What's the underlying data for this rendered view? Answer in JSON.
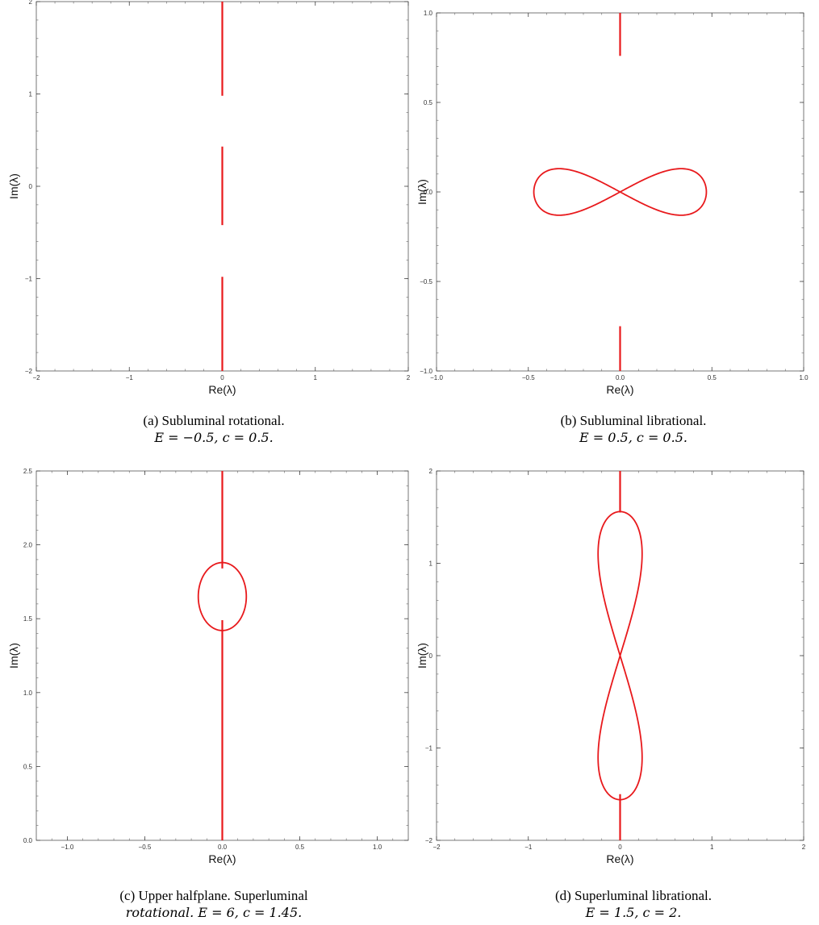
{
  "chart_data": [
    {
      "type": "line",
      "panel": "a",
      "xlabel": "Re(λ)",
      "ylabel": "Im(λ)",
      "xlim": [
        -2,
        2
      ],
      "ylim": [
        -2,
        2
      ],
      "xticks": [
        "−2",
        "−1",
        "0",
        "1",
        "2"
      ],
      "yticks": [
        "−2",
        "−1",
        "0",
        "1",
        "2"
      ],
      "line_color": "#e8191c",
      "series": [
        {
          "x": [
            0,
            0
          ],
          "y": [
            0.98,
            2.0
          ]
        },
        {
          "x": [
            0,
            0
          ],
          "y": [
            -0.42,
            0.43
          ]
        },
        {
          "x": [
            0,
            0
          ],
          "y": [
            -2.0,
            -0.98
          ]
        }
      ],
      "caption_line1": "(a) Subluminal rotational.",
      "caption_line2": "E = −0.5,  c = 0.5."
    },
    {
      "type": "line",
      "panel": "b",
      "xlabel": "Re(λ)",
      "ylabel": "Im(λ)",
      "xlim": [
        -1,
        1
      ],
      "ylim": [
        -1,
        1
      ],
      "xticks": [
        "−1.0",
        "−0.5",
        "0.0",
        "0.5",
        "1.0"
      ],
      "yticks": [
        "−1.0",
        "−0.5",
        "0.0",
        "0.5",
        "1.0"
      ],
      "line_color": "#e8191c",
      "series": [
        {
          "x": [
            0,
            0
          ],
          "y": [
            0.76,
            1.0
          ]
        },
        {
          "x": [
            0,
            0
          ],
          "y": [
            -1.0,
            -0.75
          ]
        },
        {
          "curve": "figure-eight-horizontal",
          "half_width": 0.47,
          "half_height": 0.13,
          "center": [
            0,
            0
          ]
        }
      ],
      "caption_line1": "(b) Subluminal librational.",
      "caption_line2": "E = 0.5,  c = 0.5."
    },
    {
      "type": "line",
      "panel": "c",
      "xlabel": "Re(λ)",
      "ylabel": "Im(λ)",
      "xlim": [
        -1.2,
        1.2
      ],
      "ylim": [
        0,
        2.5
      ],
      "xticks": [
        "−1.0",
        "−0.5",
        "0.0",
        "0.5",
        "1.0"
      ],
      "yticks": [
        "0.0",
        "0.5",
        "1.0",
        "1.5",
        "2.0",
        "2.5"
      ],
      "line_color": "#e8191c",
      "series": [
        {
          "x": [
            0,
            0
          ],
          "y": [
            0.0,
            1.49
          ]
        },
        {
          "x": [
            0,
            0
          ],
          "y": [
            1.84,
            2.5
          ]
        },
        {
          "curve": "ellipse",
          "center": [
            0,
            1.65
          ],
          "rx": 0.155,
          "ry": 0.23
        }
      ],
      "caption_line1": "(c) Upper halfplane. Superluminal",
      "caption_line2": "rotational. E = 6,  c = 1.45."
    },
    {
      "type": "line",
      "panel": "d",
      "xlabel": "Re(λ)",
      "ylabel": "Im(λ)",
      "xlim": [
        -2,
        2
      ],
      "ylim": [
        -2,
        2
      ],
      "xticks": [
        "−2",
        "−1",
        "0",
        "1",
        "2"
      ],
      "yticks": [
        "−2",
        "−1",
        "0",
        "1",
        "2"
      ],
      "line_color": "#e8191c",
      "series": [
        {
          "x": [
            0,
            0
          ],
          "y": [
            1.55,
            2.0
          ]
        },
        {
          "x": [
            0,
            0
          ],
          "y": [
            -2.0,
            -1.5
          ]
        },
        {
          "curve": "figure-eight-vertical",
          "half_width": 0.24,
          "half_height": 1.56,
          "center": [
            0,
            0
          ]
        }
      ],
      "caption_line1": "(d) Superluminal librational.",
      "caption_line2": "E = 1.5,  c = 2."
    }
  ]
}
